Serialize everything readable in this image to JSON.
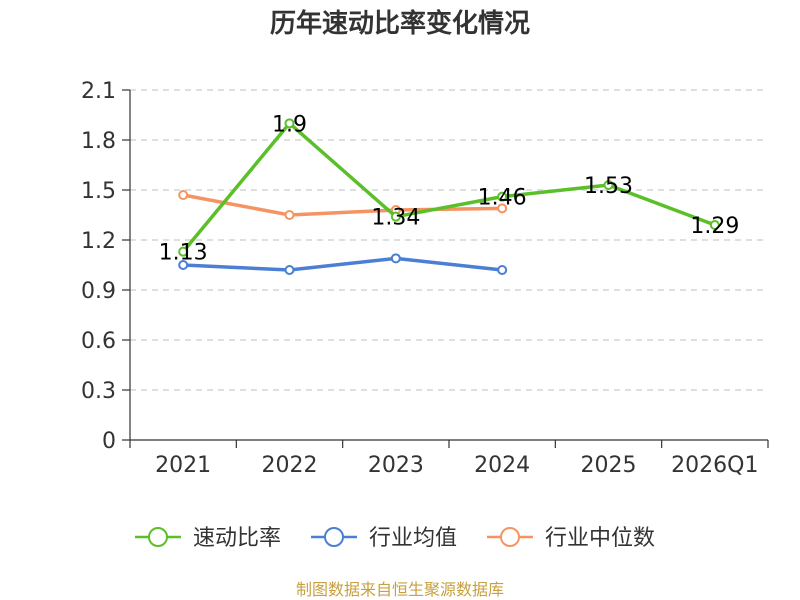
{
  "chart_data": {
    "type": "line",
    "title": "历年速动比率变化情况",
    "categories": [
      "2021",
      "2022",
      "2023",
      "2024",
      "2025",
      "2026Q1"
    ],
    "ylim": [
      0,
      2.1
    ],
    "yticks": [
      "0",
      "0.3",
      "0.6",
      "0.9",
      "1.2",
      "1.5",
      "1.8",
      "2.1"
    ],
    "grid": true,
    "legend_position": "bottom",
    "series": [
      {
        "name": "速动比率",
        "color": "#5bbf2a",
        "values": [
          1.13,
          1.9,
          1.34,
          1.46,
          1.53,
          1.29
        ],
        "labels": [
          "1.13",
          "1.9",
          "1.34",
          "1.46",
          "1.53",
          "1.29"
        ]
      },
      {
        "name": "行业均值",
        "color": "#4a7fd4",
        "values": [
          1.05,
          1.02,
          1.09,
          1.02,
          null,
          null
        ]
      },
      {
        "name": "行业中位数",
        "color": "#f59462",
        "values": [
          1.47,
          1.35,
          1.38,
          1.39,
          null,
          null
        ]
      }
    ],
    "source": "制图数据来自恒生聚源数据库"
  }
}
